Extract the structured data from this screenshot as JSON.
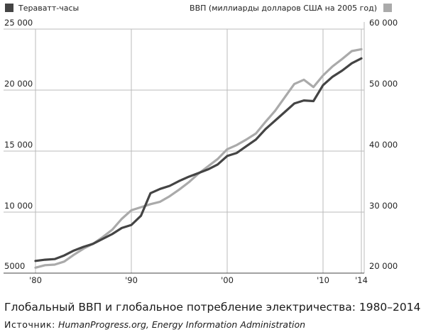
{
  "chart_data": {
    "type": "line",
    "title": "Глобальный ВВП и глобальное потребление электричества: 1980–2014",
    "source_label": "Источник:",
    "source_text": "HumanProgress.org, Energy Information Administration",
    "x": [
      1980,
      1981,
      1982,
      1983,
      1984,
      1985,
      1986,
      1987,
      1988,
      1989,
      1990,
      1991,
      1992,
      1993,
      1994,
      1995,
      1996,
      1997,
      1998,
      1999,
      2000,
      2001,
      2002,
      2003,
      2004,
      2005,
      2006,
      2007,
      2008,
      2009,
      2010,
      2011,
      2012,
      2013,
      2014
    ],
    "x_ticks": [
      1980,
      1990,
      2000,
      2010,
      2014
    ],
    "x_tick_labels": [
      "'80",
      "'90",
      "'00",
      "'10",
      "'14"
    ],
    "xlim": [
      1980,
      2014
    ],
    "ylim_left": [
      5000,
      25000
    ],
    "ylim_right": [
      20000,
      60000
    ],
    "y_ticks_left": [
      5000,
      10000,
      15000,
      20000,
      25000
    ],
    "y_tick_labels_left": [
      "5000",
      "10 000",
      "15 000",
      "20 000",
      "25 000"
    ],
    "y_ticks_right": [
      20000,
      30000,
      40000,
      50000,
      60000
    ],
    "y_tick_labels_right": [
      "20 000",
      "30 000",
      "40 000",
      "50 000",
      "60 000"
    ],
    "grid": "vertical",
    "series": [
      {
        "name": "Тераватт-часы",
        "axis": "left",
        "color": "#444444",
        "values": [
          6000,
          6100,
          6150,
          6450,
          6850,
          7150,
          7400,
          7800,
          8200,
          8700,
          8950,
          9700,
          11550,
          11900,
          12150,
          12550,
          12900,
          13200,
          13500,
          13900,
          14600,
          14850,
          15400,
          15950,
          16800,
          17500,
          18200,
          18900,
          19150,
          19100,
          20400,
          21100,
          21600,
          22200,
          22600
        ]
      },
      {
        "name": "ВВП (миллиарды долларов США на 2005 год)",
        "axis": "right",
        "color": "#aaaaaa",
        "values": [
          20900,
          21300,
          21400,
          21900,
          23000,
          24000,
          24800,
          25900,
          27100,
          28900,
          30300,
          30800,
          31300,
          31700,
          32600,
          33700,
          34900,
          36300,
          37500,
          38700,
          40300,
          41000,
          41900,
          42900,
          44800,
          46600,
          48800,
          51000,
          51700,
          50500,
          52400,
          53900,
          55100,
          56400,
          56700
        ]
      }
    ]
  }
}
